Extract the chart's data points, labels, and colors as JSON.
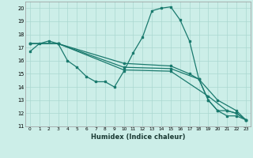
{
  "xlabel": "Humidex (Indice chaleur)",
  "bg_color": "#cceee8",
  "grid_color": "#aad8d0",
  "line_color": "#1a7a6e",
  "xlim": [
    -0.5,
    23.5
  ],
  "ylim": [
    11,
    20.5
  ],
  "yticks": [
    11,
    12,
    13,
    14,
    15,
    16,
    17,
    18,
    19,
    20
  ],
  "xticks": [
    0,
    1,
    2,
    3,
    4,
    5,
    6,
    7,
    8,
    9,
    10,
    11,
    12,
    13,
    14,
    15,
    16,
    17,
    18,
    19,
    20,
    21,
    22,
    23
  ],
  "s1": [
    [
      0,
      16.7
    ],
    [
      1,
      17.3
    ],
    [
      2,
      17.5
    ],
    [
      3,
      17.3
    ],
    [
      4,
      16.0
    ],
    [
      5,
      15.5
    ],
    [
      6,
      14.8
    ],
    [
      7,
      14.4
    ],
    [
      8,
      14.4
    ],
    [
      9,
      14.0
    ],
    [
      10,
      15.2
    ],
    [
      11,
      16.6
    ],
    [
      12,
      17.8
    ],
    [
      13,
      19.8
    ],
    [
      14,
      20.0
    ],
    [
      15,
      20.1
    ],
    [
      16,
      19.1
    ],
    [
      17,
      17.5
    ],
    [
      18,
      14.6
    ],
    [
      19,
      13.0
    ],
    [
      20,
      12.2
    ],
    [
      21,
      11.8
    ],
    [
      22,
      11.8
    ],
    [
      23,
      11.5
    ]
  ],
  "s2": [
    [
      0,
      17.3
    ],
    [
      3,
      17.3
    ],
    [
      10,
      15.3
    ],
    [
      15,
      15.2
    ],
    [
      19,
      13.3
    ],
    [
      21,
      12.2
    ],
    [
      22,
      12.0
    ],
    [
      23,
      11.5
    ]
  ],
  "s3": [
    [
      0,
      17.3
    ],
    [
      3,
      17.3
    ],
    [
      10,
      15.5
    ],
    [
      15,
      15.4
    ],
    [
      18,
      14.6
    ],
    [
      20,
      13.0
    ],
    [
      22,
      12.2
    ],
    [
      23,
      11.5
    ]
  ],
  "s4": [
    [
      0,
      17.3
    ],
    [
      3,
      17.3
    ],
    [
      10,
      15.8
    ],
    [
      15,
      15.6
    ],
    [
      17,
      15.0
    ],
    [
      18,
      14.6
    ],
    [
      19,
      13.0
    ],
    [
      20,
      12.2
    ],
    [
      21,
      12.2
    ],
    [
      22,
      12.0
    ],
    [
      23,
      11.5
    ]
  ]
}
